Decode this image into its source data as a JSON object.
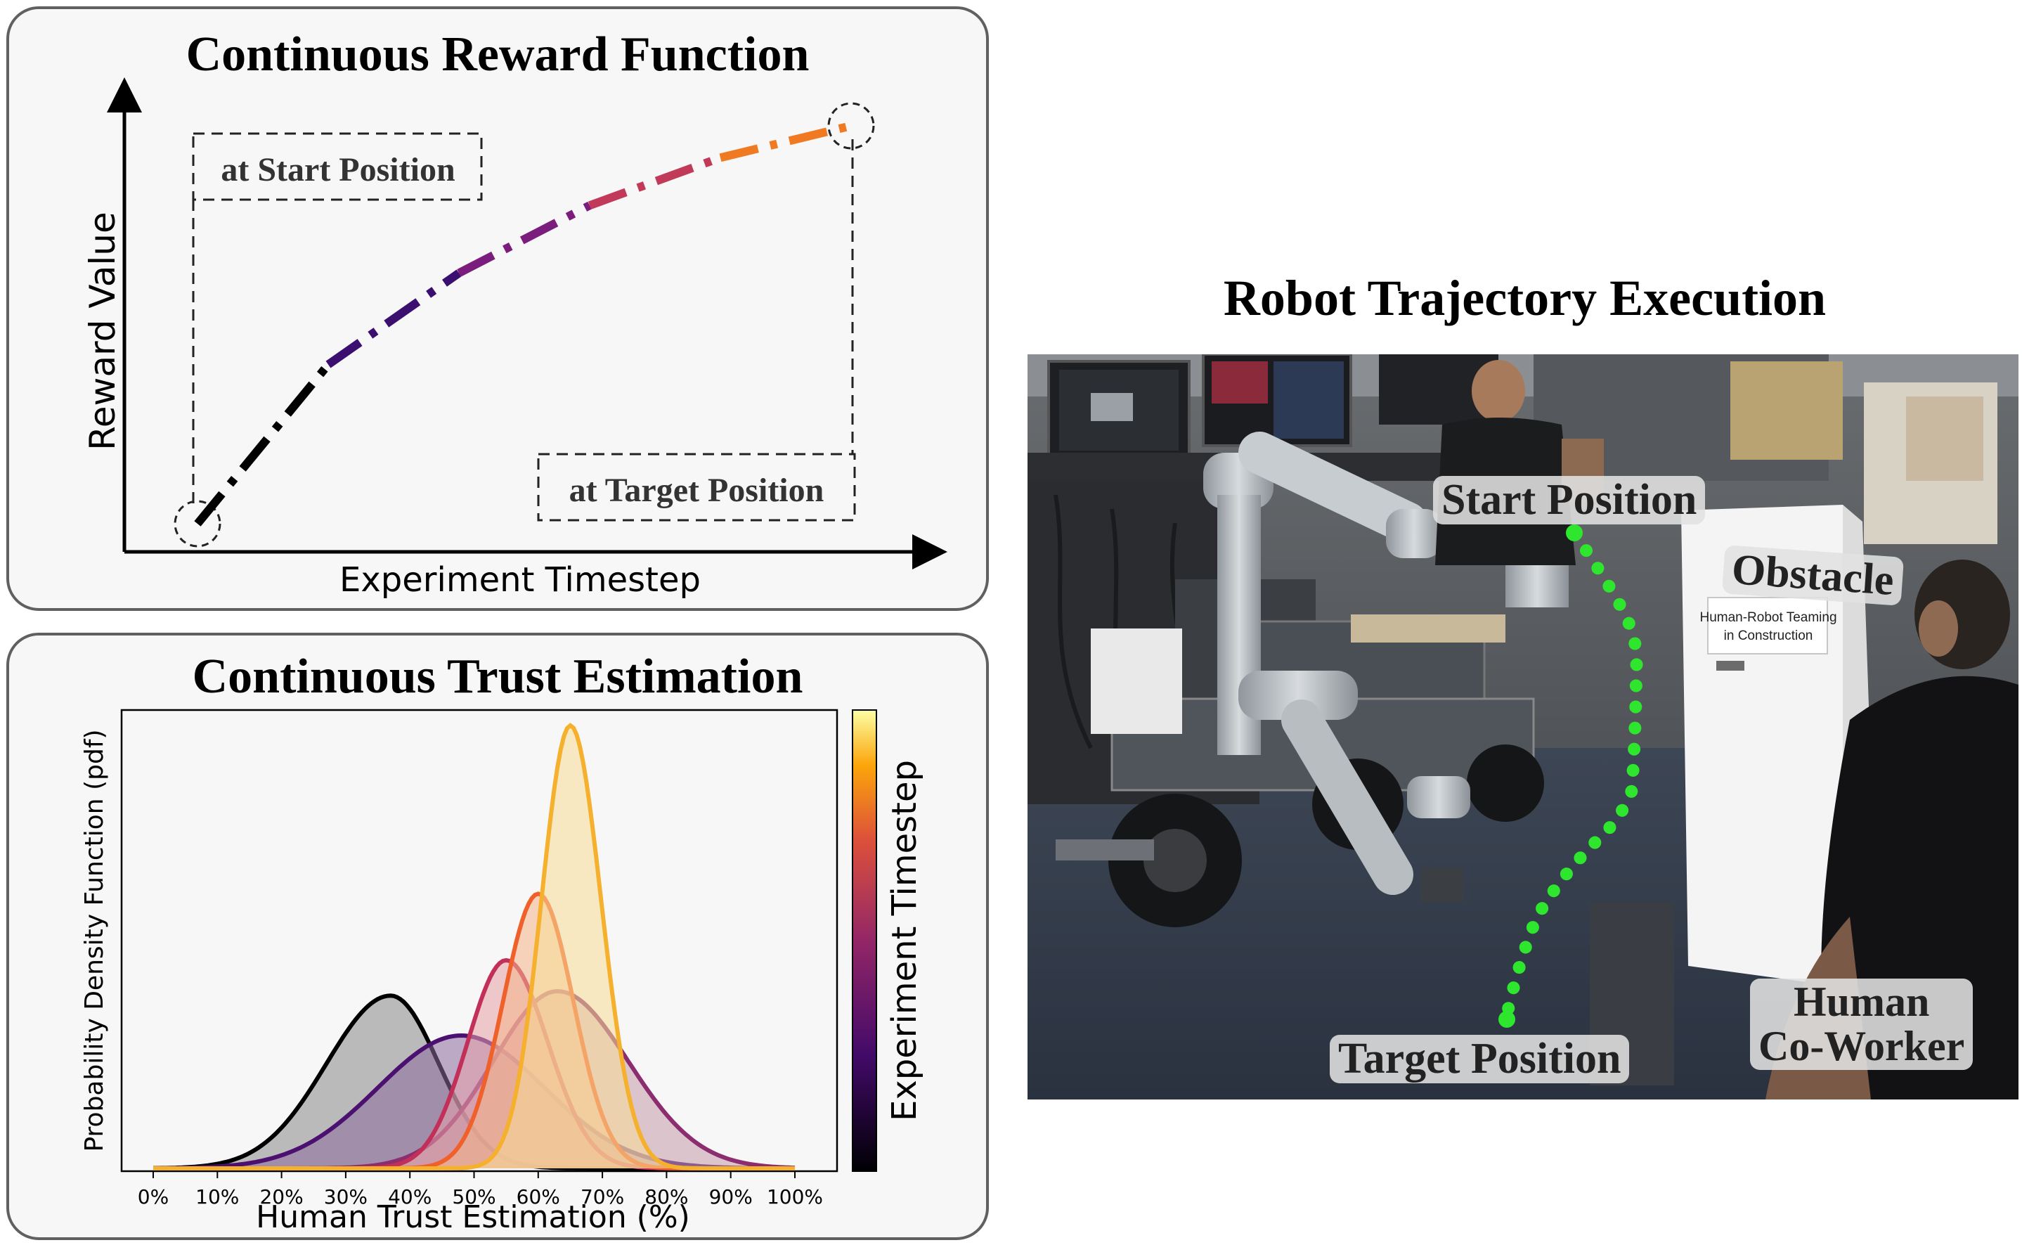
{
  "reward_panel": {
    "title": "Continuous Reward Function",
    "xlabel": "Experiment Timestep",
    "ylabel": "Reward Value",
    "start_label": "at Start Position",
    "target_label": "at Target Position"
  },
  "trust_panel": {
    "title": "Continuous Trust Estimation",
    "xlabel": "Human Trust Estimation (%)",
    "ylabel": "Probability Density Function (pdf)",
    "colorbar_label": "Experiment Timestep",
    "x_ticks": [
      "0%",
      "10%",
      "20%",
      "30%",
      "40%",
      "50%",
      "60%",
      "70%",
      "80%",
      "90%",
      "100%"
    ]
  },
  "robot_panel": {
    "title": "Robot Trajectory Execution",
    "start_label": "Start Position",
    "obstacle_label": "Obstacle",
    "sign_line1": "Human-Robot Teaming",
    "sign_line2": "in Construction",
    "target_label": "Target Position",
    "human_line1": "Human",
    "human_line2": "Co-Worker"
  },
  "chart_data": [
    {
      "type": "line",
      "title": "Continuous Reward Function",
      "xlabel": "Experiment Timestep",
      "ylabel": "Reward Value",
      "points": [
        [
          0,
          0
        ],
        [
          0.2,
          0.4
        ],
        [
          0.4,
          0.63
        ],
        [
          0.6,
          0.8
        ],
        [
          0.8,
          0.92
        ],
        [
          1.0,
          1.0
        ]
      ],
      "segment_colors": [
        "#000000",
        "#3b0f6f",
        "#7a1d7c",
        "#c23a5a",
        "#f07a22"
      ],
      "axis_ticks": "none"
    },
    {
      "type": "area",
      "title": "Continuous Trust Estimation",
      "xlabel": "Human Trust Estimation (%)",
      "ylabel": "Probability Density Function (pdf)",
      "xlim": [
        0,
        100
      ],
      "colorbar": "Experiment Timestep",
      "series": [
        {
          "mean": 37,
          "sd_left": 10,
          "sd_right": 7.5,
          "peak": 0.39,
          "color": "#000000",
          "fill": "#888888"
        },
        {
          "mean": 48,
          "sd_left": 13,
          "sd_right": 13,
          "peak": 0.3,
          "color": "#4b1070",
          "fill": "#8a6a9c"
        },
        {
          "mean": 63,
          "sd_left": 10,
          "sd_right": 11,
          "peak": 0.4,
          "color": "#8b2d6e",
          "fill": "#c49aa8"
        },
        {
          "mean": 55,
          "sd_left": 6,
          "sd_right": 6.5,
          "peak": 0.47,
          "color": "#c2305a",
          "fill": "#e7a0a8"
        },
        {
          "mean": 60,
          "sd_left": 5.5,
          "sd_right": 5.5,
          "peak": 0.62,
          "color": "#f0602a",
          "fill": "#f6b58a"
        },
        {
          "mean": 65,
          "sd_left": 4.5,
          "sd_right": 4.8,
          "peak": 1.0,
          "color": "#f5b02e",
          "fill": "#f7dc98"
        }
      ]
    }
  ]
}
